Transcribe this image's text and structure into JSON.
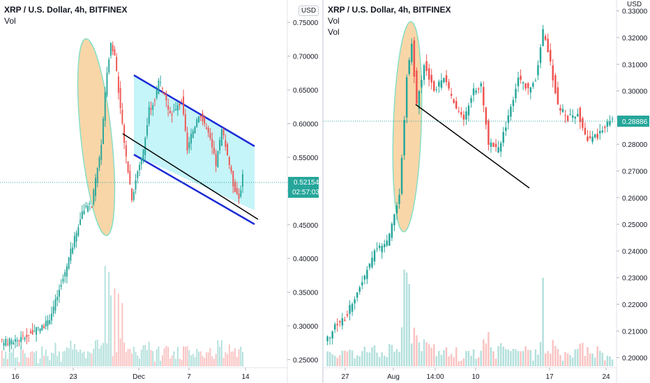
{
  "colors": {
    "up": "#26a69a",
    "down": "#ef5350",
    "highlight_fill": "#f7c98b",
    "highlight_stroke": "#5fd3b3",
    "channel_fill": "#b2f0f7",
    "channel_line": "#1c2bd6",
    "trend": "#000000",
    "price_tag": "#26a69a"
  },
  "left": {
    "title": "XRP / U.S. Dollar, 4h, BITFINEX",
    "vol_label": "Vol",
    "currency_button": "USD",
    "price_badge": "0.52154",
    "countdown_badge": "02:57:03"
  },
  "right": {
    "title": "XRP / U.S. Dollar, 4h, BITFINEX",
    "vol_labels": [
      "Vol",
      "Vol"
    ],
    "currency_label": "USD",
    "price_badge": "0.28886"
  },
  "chart_data": [
    {
      "type": "candlestick",
      "title": "XRP / U.S. Dollar, 4h, BITFINEX",
      "y_ticks": [
        "0.75000",
        "0.70000",
        "0.65000",
        "0.60000",
        "0.55000",
        "0.50000",
        "0.45000",
        "0.40000",
        "0.35000",
        "0.30000",
        "0.25000"
      ],
      "x_ticks": [
        "16",
        "23",
        "Dec",
        "7",
        "14"
      ],
      "ylim": [
        0.235,
        0.775
      ],
      "last_price": 0.52154,
      "anchors": [
        {
          "i": 0,
          "p": 0.275
        },
        {
          "i": 10,
          "p": 0.28
        },
        {
          "i": 20,
          "p": 0.295
        },
        {
          "i": 25,
          "p": 0.305
        },
        {
          "i": 32,
          "p": 0.36
        },
        {
          "i": 38,
          "p": 0.42
        },
        {
          "i": 43,
          "p": 0.47
        },
        {
          "i": 48,
          "p": 0.48
        },
        {
          "i": 53,
          "p": 0.57
        },
        {
          "i": 56,
          "p": 0.68
        },
        {
          "i": 58,
          "p": 0.72
        },
        {
          "i": 60,
          "p": 0.7
        },
        {
          "i": 63,
          "p": 0.62
        },
        {
          "i": 66,
          "p": 0.55
        },
        {
          "i": 69,
          "p": 0.49
        },
        {
          "i": 72,
          "p": 0.53
        },
        {
          "i": 75,
          "p": 0.56
        },
        {
          "i": 78,
          "p": 0.62
        },
        {
          "i": 81,
          "p": 0.635
        },
        {
          "i": 83,
          "p": 0.665
        },
        {
          "i": 86,
          "p": 0.64
        },
        {
          "i": 89,
          "p": 0.615
        },
        {
          "i": 92,
          "p": 0.62
        },
        {
          "i": 95,
          "p": 0.635
        },
        {
          "i": 98,
          "p": 0.56
        },
        {
          "i": 101,
          "p": 0.59
        },
        {
          "i": 104,
          "p": 0.615
        },
        {
          "i": 107,
          "p": 0.6
        },
        {
          "i": 110,
          "p": 0.575
        },
        {
          "i": 113,
          "p": 0.54
        },
        {
          "i": 116,
          "p": 0.59
        },
        {
          "i": 119,
          "p": 0.555
        },
        {
          "i": 122,
          "p": 0.51
        },
        {
          "i": 125,
          "p": 0.49
        },
        {
          "i": 127,
          "p": 0.521
        }
      ],
      "annotations": [
        "highlight-ellipse",
        "descending-channel",
        "trend-line"
      ]
    },
    {
      "type": "candlestick",
      "title": "XRP / U.S. Dollar, 4h, BITFINEX",
      "y_ticks": [
        "0.33000",
        "0.32000",
        "0.31000",
        "0.30000",
        "0.29000",
        "0.28000",
        "0.27000",
        "0.26000",
        "0.25000",
        "0.24000",
        "0.23000",
        "0.22000",
        "0.21000",
        "0.20000"
      ],
      "x_ticks": [
        "27",
        "Aug",
        "14:00",
        "10",
        "17",
        "24"
      ],
      "ylim": [
        0.1965,
        0.332
      ],
      "last_price": 0.28886,
      "anchors": [
        {
          "i": 0,
          "p": 0.205
        },
        {
          "i": 4,
          "p": 0.212
        },
        {
          "i": 8,
          "p": 0.215
        },
        {
          "i": 12,
          "p": 0.222
        },
        {
          "i": 16,
          "p": 0.23
        },
        {
          "i": 20,
          "p": 0.24
        },
        {
          "i": 25,
          "p": 0.243
        },
        {
          "i": 30,
          "p": 0.26
        },
        {
          "i": 33,
          "p": 0.305
        },
        {
          "i": 35,
          "p": 0.318
        },
        {
          "i": 37,
          "p": 0.295
        },
        {
          "i": 40,
          "p": 0.31
        },
        {
          "i": 44,
          "p": 0.3
        },
        {
          "i": 48,
          "p": 0.305
        },
        {
          "i": 52,
          "p": 0.295
        },
        {
          "i": 56,
          "p": 0.29
        },
        {
          "i": 60,
          "p": 0.3
        },
        {
          "i": 63,
          "p": 0.302
        },
        {
          "i": 66,
          "p": 0.28
        },
        {
          "i": 70,
          "p": 0.278
        },
        {
          "i": 74,
          "p": 0.29
        },
        {
          "i": 78,
          "p": 0.305
        },
        {
          "i": 82,
          "p": 0.3
        },
        {
          "i": 85,
          "p": 0.305
        },
        {
          "i": 88,
          "p": 0.322
        },
        {
          "i": 91,
          "p": 0.31
        },
        {
          "i": 94,
          "p": 0.295
        },
        {
          "i": 98,
          "p": 0.29
        },
        {
          "i": 102,
          "p": 0.292
        },
        {
          "i": 106,
          "p": 0.282
        },
        {
          "i": 110,
          "p": 0.283
        },
        {
          "i": 114,
          "p": 0.288
        },
        {
          "i": 116,
          "p": 0.2889
        }
      ],
      "annotations": [
        "highlight-ellipse",
        "trend-line"
      ]
    }
  ]
}
